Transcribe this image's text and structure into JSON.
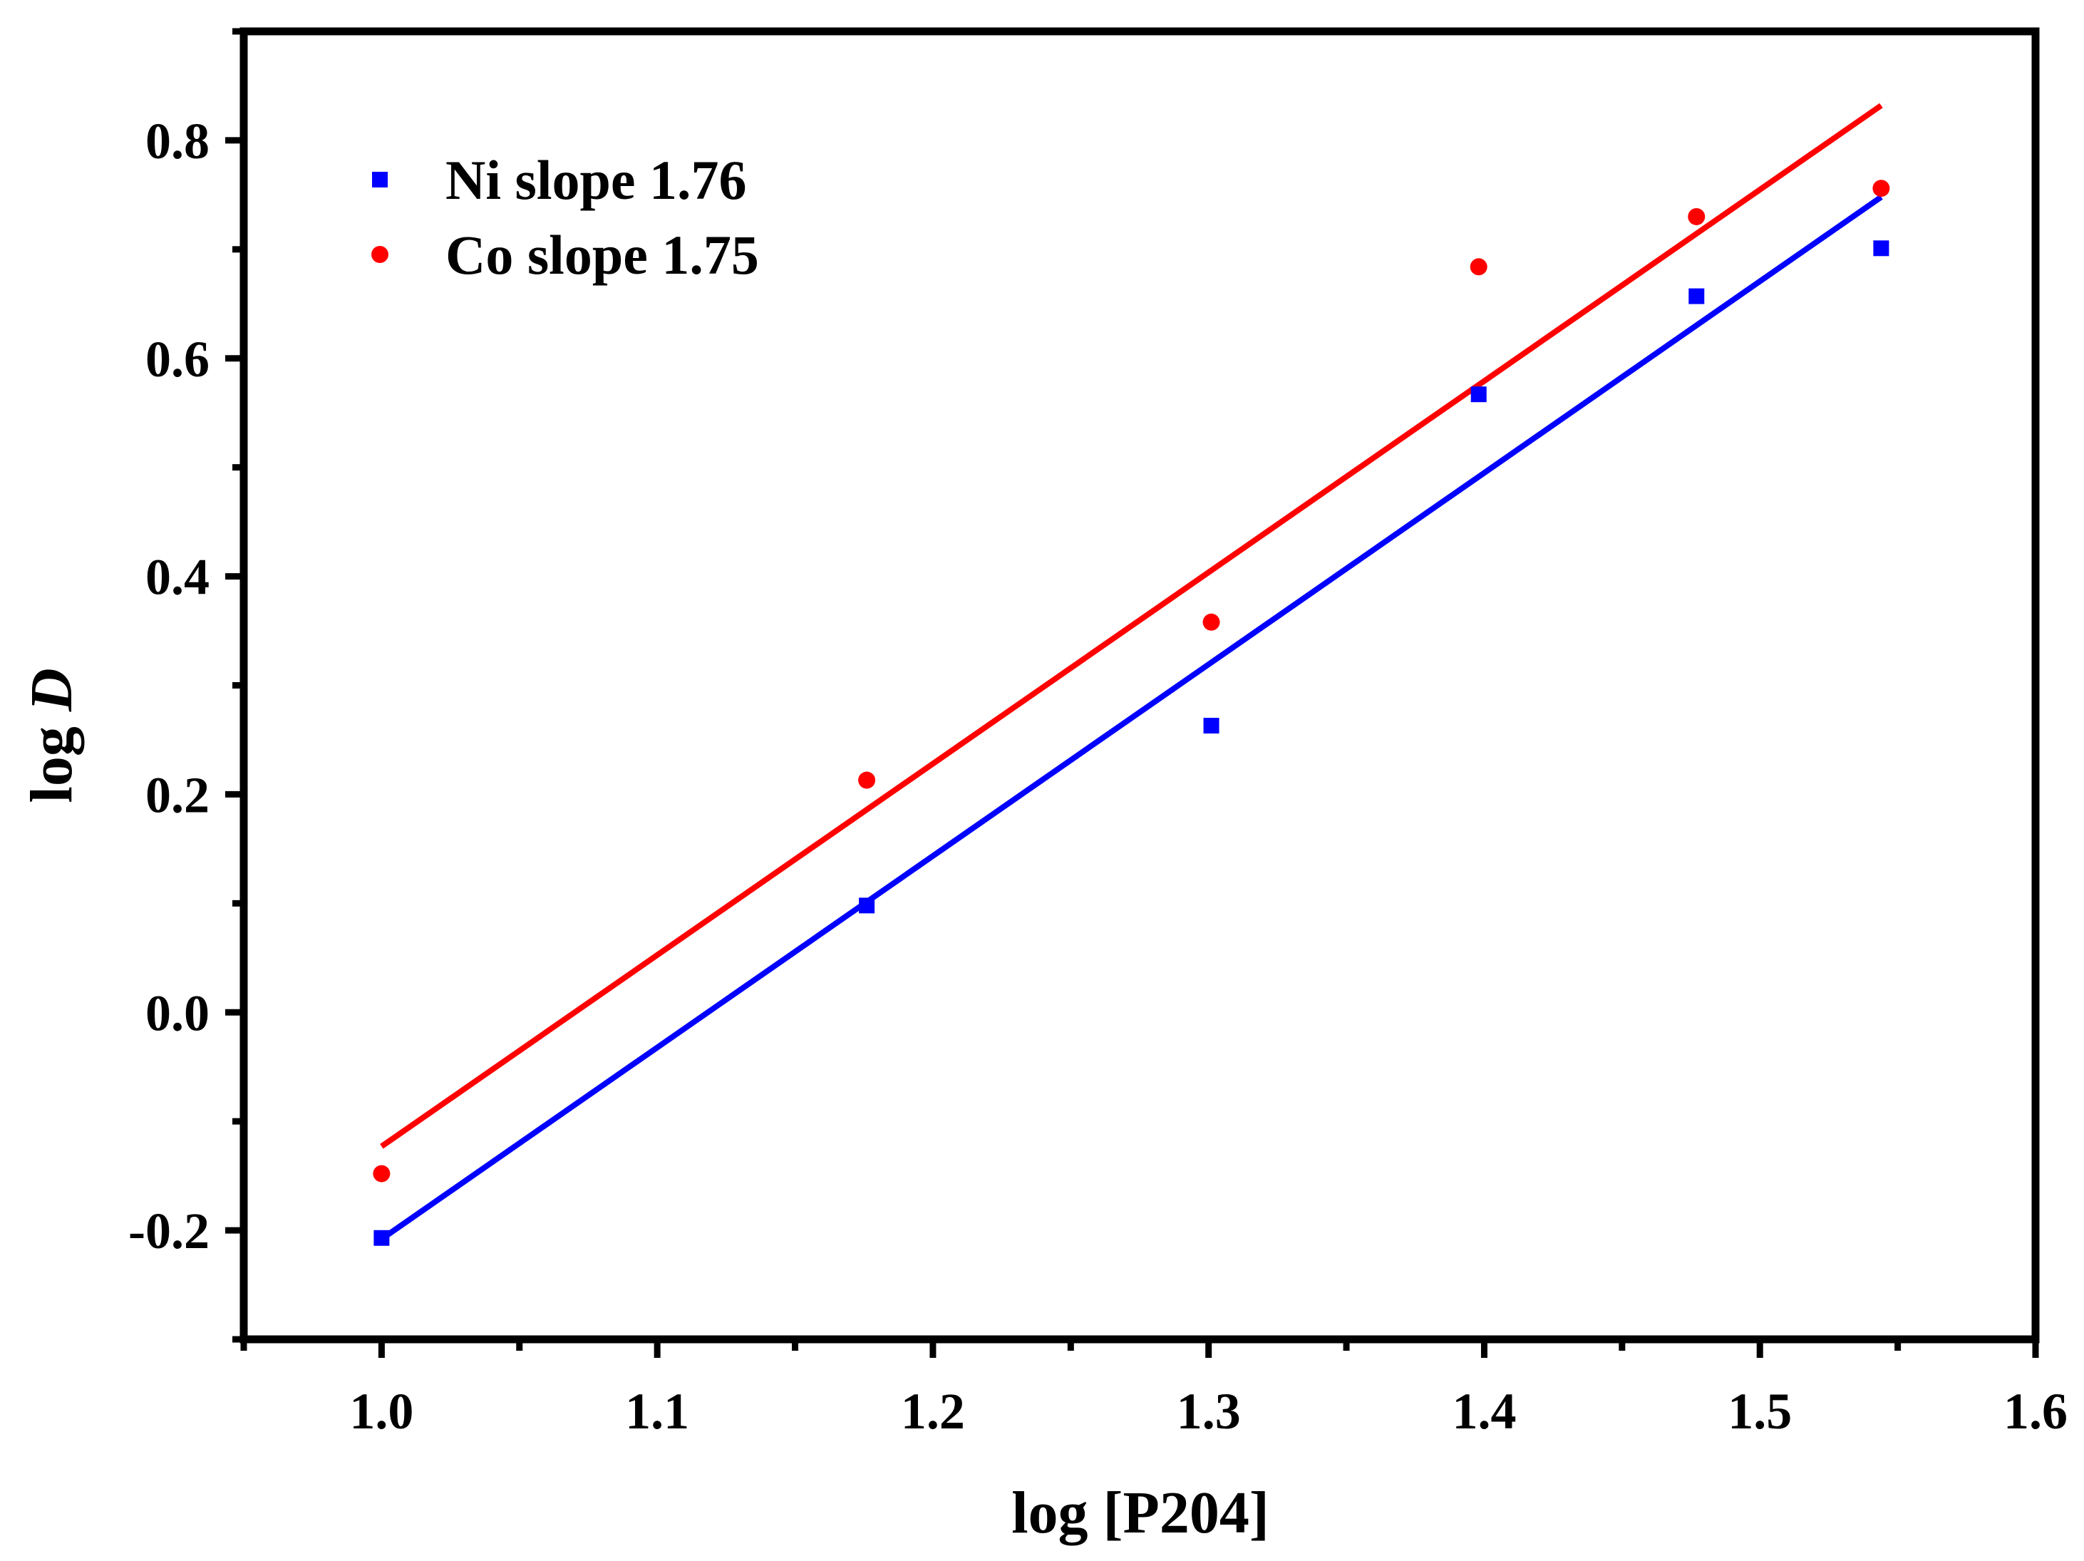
{
  "chart_data": {
    "type": "scatter",
    "title": "",
    "xlabel": "log [P204]",
    "ylabel": {
      "prefix": "log ",
      "italic": "D"
    },
    "xlim": [
      0.95,
      1.6
    ],
    "ylim": [
      -0.3,
      0.9
    ],
    "x_ticks": [
      1.0,
      1.1,
      1.2,
      1.3,
      1.4,
      1.5,
      1.6
    ],
    "x_tick_labels": [
      "1.0",
      "1.1",
      "1.2",
      "1.3",
      "1.4",
      "1.5",
      "1.6"
    ],
    "y_ticks": [
      -0.2,
      0.0,
      0.2,
      0.4,
      0.6,
      0.8
    ],
    "y_tick_labels": [
      "-0.2",
      "0.0",
      "0.2",
      "0.4",
      "0.6",
      "0.8"
    ],
    "grid": false,
    "legend_position": "top-left",
    "series": [
      {
        "name": "Ni slope 1.76",
        "marker": "square",
        "color": "#0000ff",
        "x": [
          1.0,
          1.176,
          1.301,
          1.398,
          1.477,
          1.544
        ],
        "y": [
          -0.207,
          0.098,
          0.263,
          0.567,
          0.657,
          0.701
        ],
        "fit": {
          "x": [
            1.0,
            1.544
          ],
          "y": [
            -0.208,
            0.748
          ]
        }
      },
      {
        "name": "Co slope 1.75",
        "marker": "circle",
        "color": "#ff0000",
        "x": [
          1.0,
          1.176,
          1.301,
          1.398,
          1.477,
          1.544
        ],
        "y": [
          -0.148,
          0.213,
          0.358,
          0.684,
          0.73,
          0.756
        ],
        "fit": {
          "x": [
            1.0,
            1.544
          ],
          "y": [
            -0.123,
            0.832
          ]
        }
      }
    ]
  }
}
